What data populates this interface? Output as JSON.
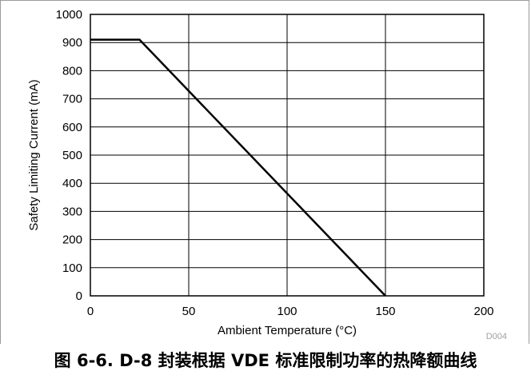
{
  "chart_data": {
    "type": "line",
    "xlabel": "Ambient Temperature (°C)",
    "ylabel": "Safety Limiting Current (mA)",
    "xlim": [
      0,
      200
    ],
    "ylim": [
      0,
      1000
    ],
    "x_ticks": [
      "0",
      "50",
      "100",
      "150",
      "200"
    ],
    "y_ticks": [
      "0",
      "100",
      "200",
      "300",
      "400",
      "500",
      "600",
      "700",
      "800",
      "900",
      "1000"
    ],
    "grid": true,
    "series": [
      {
        "x": [
          0,
          25,
          150
        ],
        "y": [
          910,
          910,
          0
        ]
      }
    ],
    "figure_id": "D004",
    "colors": {
      "line": "#000000",
      "grid": "#000000",
      "frame": "#9a9a9a"
    }
  },
  "caption": "图 6-6. D-8 封装根据 VDE 标准限制功率的热降额曲线"
}
